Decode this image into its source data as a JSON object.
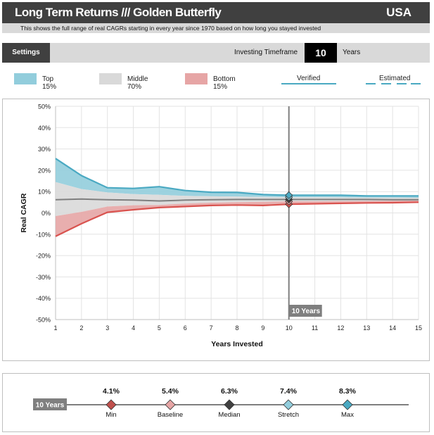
{
  "header": {
    "title": "Long Term Returns /// Golden Butterfly",
    "country": "USA",
    "subtitle": "This shows the full range of real CAGRs starting in every year since 1970 based on how long you stayed invested"
  },
  "controls": {
    "settings_label": "Settings",
    "timeframe_label": "Investing Timeframe",
    "timeframe_value": "10",
    "timeframe_unit": "Years"
  },
  "legend": {
    "top": "Top 15%",
    "middle": "Middle 70%",
    "bottom": "Bottom 15%",
    "verified": "Verified",
    "estimated": "Estimated"
  },
  "colors": {
    "top_fill": "#92cddc",
    "middle_fill": "#d9d9d9",
    "bottom_fill": "#e6a5a5",
    "top_line": "#4aa9c2",
    "median_line": "#7f7f7f",
    "bottom_line": "#d9534f",
    "marker_line": "#7f7f7f",
    "dark": "#404040"
  },
  "chart_data": {
    "type": "area",
    "xlabel": "Years Invested",
    "ylabel": "Real CAGR",
    "x": [
      1,
      2,
      3,
      4,
      5,
      6,
      7,
      8,
      9,
      10,
      11,
      12,
      13,
      14,
      15
    ],
    "ylim": [
      -50,
      50
    ],
    "y_ticks": [
      -50,
      -40,
      -30,
      -20,
      -10,
      0,
      10,
      20,
      30,
      40,
      50
    ],
    "y_tick_labels": [
      "-50%",
      "-40%",
      "-30%",
      "-20%",
      "-10%",
      "0%",
      "10%",
      "20%",
      "30%",
      "40%",
      "50%"
    ],
    "series": [
      {
        "name": "Max",
        "values": [
          25.5,
          17.5,
          11.8,
          11.5,
          12.3,
          10.5,
          9.7,
          9.6,
          8.6,
          8.3,
          8.3,
          8.3,
          8.0,
          8.0,
          8.0
        ]
      },
      {
        "name": "Stretch",
        "values": [
          14.5,
          11.2,
          9.6,
          8.8,
          8.5,
          8.0,
          7.8,
          7.7,
          7.5,
          7.4,
          7.4,
          7.3,
          7.2,
          7.2,
          7.1
        ]
      },
      {
        "name": "Median",
        "values": [
          6.2,
          6.5,
          6.2,
          6.0,
          5.6,
          6.0,
          6.2,
          6.3,
          6.3,
          6.3,
          6.3,
          6.3,
          6.3,
          6.2,
          6.2
        ]
      },
      {
        "name": "Baseline",
        "values": [
          -1.5,
          0.5,
          3.0,
          3.6,
          3.7,
          4.4,
          4.8,
          5.0,
          5.2,
          5.4,
          5.4,
          5.5,
          5.6,
          5.7,
          5.8
        ]
      },
      {
        "name": "Min",
        "values": [
          -11.0,
          -5.0,
          0.3,
          1.5,
          2.5,
          3.0,
          3.5,
          3.7,
          3.5,
          4.1,
          4.3,
          4.5,
          4.7,
          4.8,
          5.0
        ]
      }
    ],
    "marker": {
      "x": 10,
      "label": "10 Years"
    },
    "grid": true
  },
  "stats": {
    "timeframe_label": "10 Years",
    "items": [
      {
        "name": "Min",
        "value": "4.1%",
        "color": "#c0504d"
      },
      {
        "name": "Baseline",
        "value": "5.4%",
        "color": "#e6a5a5"
      },
      {
        "name": "Median",
        "value": "6.3%",
        "color": "#404040"
      },
      {
        "name": "Stretch",
        "value": "7.4%",
        "color": "#92cddc"
      },
      {
        "name": "Max",
        "value": "8.3%",
        "color": "#4aa9c2"
      }
    ]
  }
}
